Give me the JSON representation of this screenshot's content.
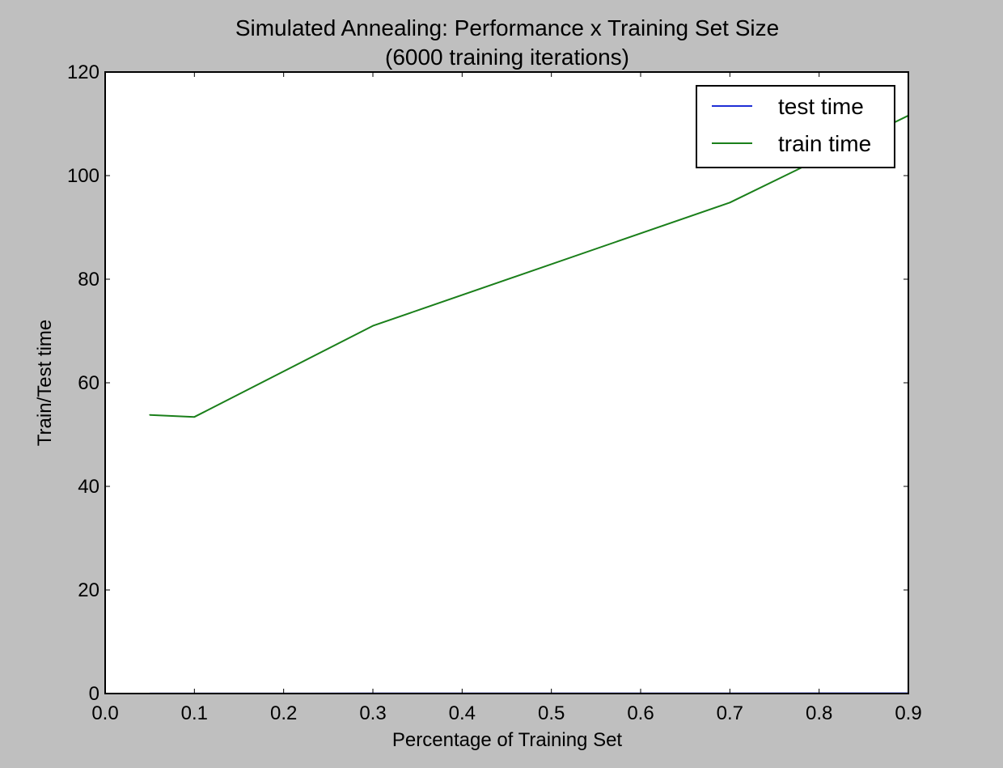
{
  "chart_data": {
    "type": "line",
    "title": "Simulated Annealing: Performance x Training Set Size",
    "subtitle": "(6000 training iterations)",
    "xlabel": "Percentage of Training Set",
    "ylabel": "Train/Test time",
    "xlim": [
      0.0,
      0.9
    ],
    "ylim": [
      0,
      120
    ],
    "xticks": [
      "0.0",
      "0.1",
      "0.2",
      "0.3",
      "0.4",
      "0.5",
      "0.6",
      "0.7",
      "0.8",
      "0.9"
    ],
    "yticks": [
      "0",
      "20",
      "40",
      "60",
      "80",
      "100",
      "120"
    ],
    "grid": false,
    "legend_position": "top-right",
    "series": [
      {
        "name": "test time",
        "color": "#1f2fd6",
        "x": [
          0.05,
          0.1,
          0.3,
          0.7,
          0.9
        ],
        "y": [
          0.02,
          0.02,
          0.03,
          0.05,
          0.06
        ]
      },
      {
        "name": "train time",
        "color": "#1a7f1a",
        "x": [
          0.05,
          0.1,
          0.3,
          0.7,
          0.9
        ],
        "y": [
          53.8,
          53.4,
          71.0,
          94.8,
          111.6
        ]
      }
    ]
  }
}
